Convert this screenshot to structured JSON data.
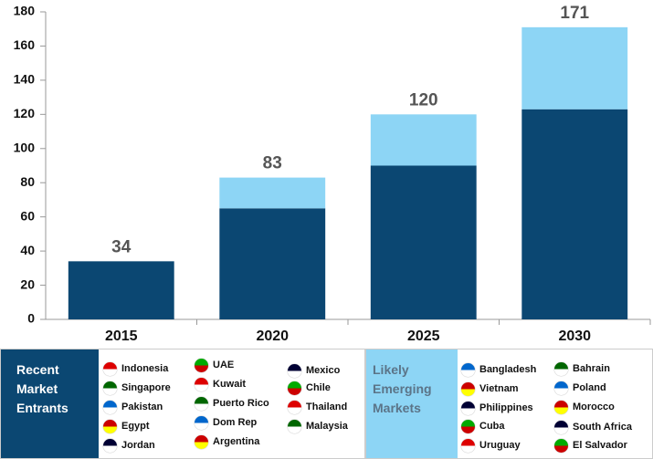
{
  "chart_data": {
    "type": "bar",
    "stacked": true,
    "categories": [
      "2015",
      "2020",
      "2025",
      "2030"
    ],
    "series": [
      {
        "name": "Recent Market Entrants",
        "color": "#0b4772",
        "values": [
          34,
          65,
          90,
          123
        ],
        "countries": [
          [
            "Indonesia",
            "Singapore",
            "Pakistan",
            "Egypt",
            "Jordan"
          ],
          [
            "UAE",
            "Kuwait",
            "Puerto Rico",
            "Dom Rep",
            "Argentina"
          ],
          [
            "Mexico",
            "Chile",
            "Thailand",
            "Malaysia"
          ]
        ]
      },
      {
        "name": "Likely Emerging Markets",
        "color": "#8dd5f5",
        "values": [
          0,
          18,
          30,
          48
        ],
        "countries": [
          [
            "Bangladesh",
            "Vietnam",
            "Philippines",
            "Cuba",
            "Uruguay"
          ],
          [
            "Bahrain",
            "Poland",
            "Morocco",
            "South Africa",
            "El Salvador"
          ]
        ]
      }
    ],
    "totals": [
      34,
      83,
      120,
      171
    ],
    "ylim": [
      0,
      180
    ],
    "yticks": [
      0,
      20,
      40,
      60,
      80,
      100,
      120,
      140,
      160,
      180
    ],
    "grid": false
  }
}
